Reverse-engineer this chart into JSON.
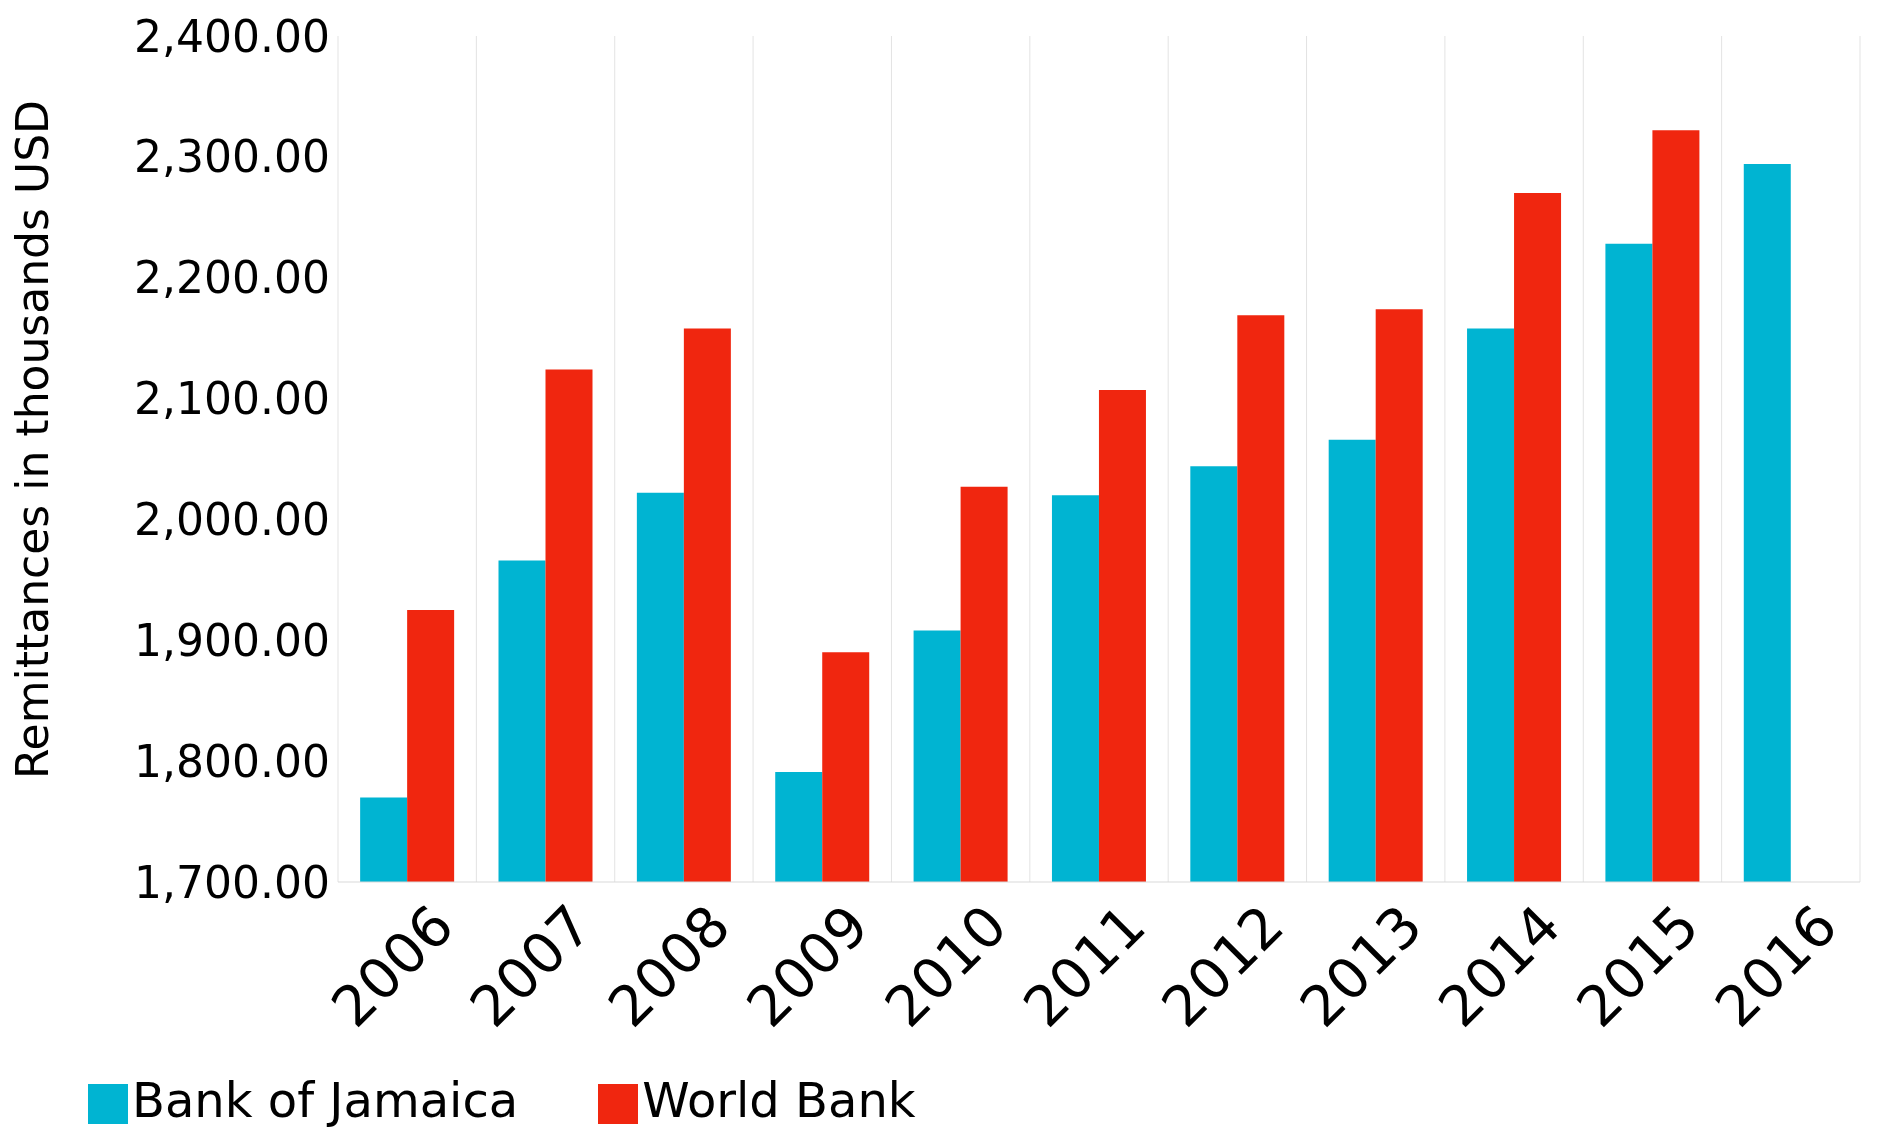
{
  "chart_data": {
    "type": "bar",
    "ylabel": "Remittances in thousands USD",
    "categories": [
      "2006",
      "2007",
      "2008",
      "2009",
      "2010",
      "2011",
      "2012",
      "2013",
      "2014",
      "2015",
      "2016"
    ],
    "series": [
      {
        "name": "Bank of Jamaica",
        "color": "#00b4d2",
        "values": [
          1770,
          1966,
          2022,
          1791,
          1908,
          2020,
          2044,
          2066,
          2158,
          2228,
          2294
        ]
      },
      {
        "name": "World Bank",
        "color": "#f0260f",
        "values": [
          1925,
          2124,
          2158,
          1890,
          2027,
          2107,
          2169,
          2174,
          2270,
          2322,
          null
        ]
      }
    ],
    "ylim": [
      1700,
      2400
    ],
    "yticks": [
      {
        "value": 1700,
        "label": "1,700.00"
      },
      {
        "value": 1800,
        "label": "1,800.00"
      },
      {
        "value": 1900,
        "label": "1,900.00"
      },
      {
        "value": 2000,
        "label": "2,000.00"
      },
      {
        "value": 2100,
        "label": "2,100.00"
      },
      {
        "value": 2200,
        "label": "2,200.00"
      },
      {
        "value": 2300,
        "label": "2,300.00"
      },
      {
        "value": 2400,
        "label": "2,400.00"
      }
    ],
    "grid": "x",
    "legend": "bottom left"
  }
}
